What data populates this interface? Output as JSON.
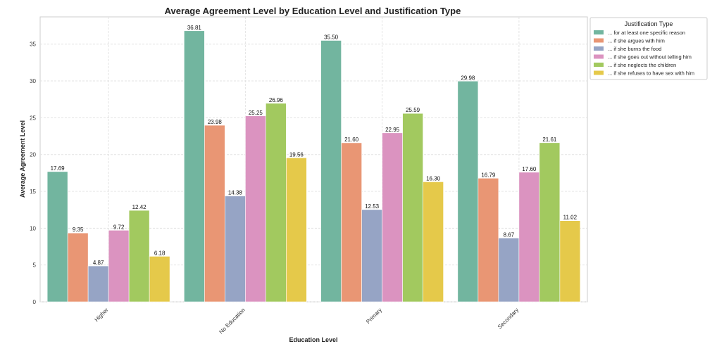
{
  "chart_data": {
    "type": "bar",
    "title": "Average Agreement Level by Education Level and Justification Type",
    "xlabel": "Education Level",
    "ylabel": "Average Agreement Level",
    "categories": [
      "Higher",
      "No Education",
      "Primary",
      "Secondary"
    ],
    "ylim": [
      0,
      38.7
    ],
    "yticks": [
      0,
      5,
      10,
      15,
      20,
      25,
      30,
      35
    ],
    "grid": true,
    "legend": {
      "title": "Justification Type",
      "placement": "outside-top-right"
    },
    "series": [
      {
        "name": "... for at least one specific reason",
        "color": "#72b59f",
        "values": [
          17.69,
          36.81,
          35.5,
          29.98
        ],
        "labels": [
          "17.69",
          "36.81",
          "35.50",
          "29.98"
        ]
      },
      {
        "name": "... if she argues with him",
        "color": "#e99674",
        "values": [
          9.35,
          23.98,
          21.6,
          16.79
        ],
        "labels": [
          "9.35",
          "23.98",
          "21.60",
          "16.79"
        ]
      },
      {
        "name": "... if she burns the food",
        "color": "#96a4c5",
        "values": [
          4.87,
          14.38,
          12.53,
          8.67
        ],
        "labels": [
          "4.87",
          "14.38",
          "12.53",
          "8.67"
        ]
      },
      {
        "name": "... if she goes out without telling him",
        "color": "#db93c0",
        "values": [
          9.72,
          25.25,
          22.95,
          17.6
        ],
        "labels": [
          "9.72",
          "25.25",
          "22.95",
          "17.60"
        ]
      },
      {
        "name": "... if she neglects the children",
        "color": "#a2c95f",
        "values": [
          12.42,
          26.96,
          25.59,
          21.61
        ],
        "labels": [
          "12.42",
          "26.96",
          "25.59",
          "21.61"
        ]
      },
      {
        "name": "... if she refuses to have sex with him",
        "color": "#e5c94a",
        "values": [
          6.18,
          19.56,
          16.3,
          11.02
        ],
        "labels": [
          "6.18",
          "19.56",
          "16.30",
          "11.02"
        ]
      }
    ]
  }
}
